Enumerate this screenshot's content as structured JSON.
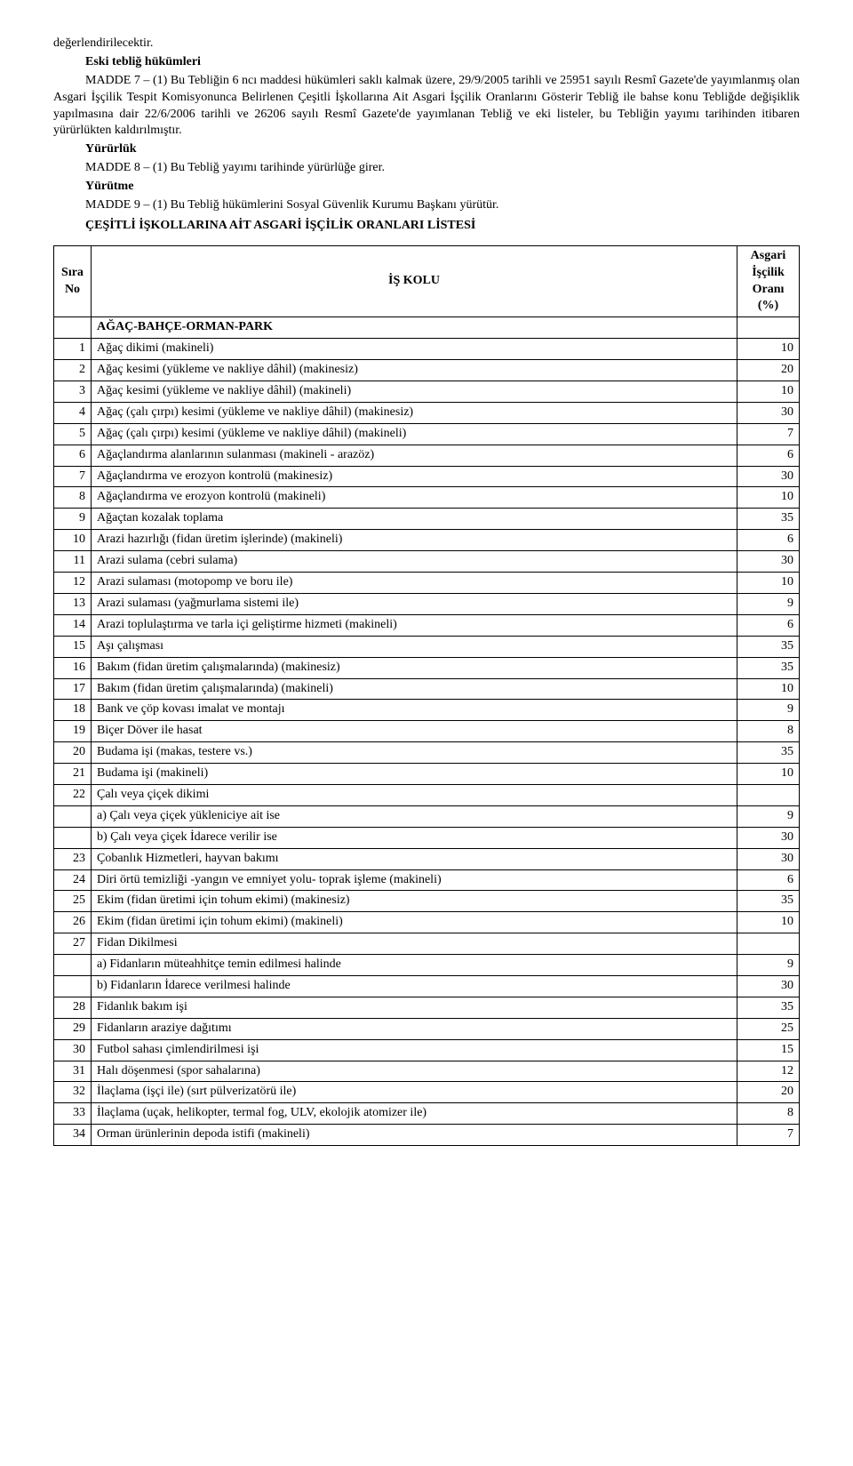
{
  "intro": {
    "line1": "değerlendirilecektir.",
    "heading1": "Eski tebliğ hükümleri",
    "madde7": "MADDE 7 – (1) Bu Tebliğin 6 ncı maddesi hükümleri saklı kalmak üzere, 29/9/2005 tarihli ve 25951 sayılı Resmî Gazete'de yayımlanmış olan Asgari İşçilik Tespit Komisyonunca Belirlenen Çeşitli İşkollarına Ait Asgari İşçilik Oranlarını Gösterir Tebliğ ile bahse konu Tebliğde değişiklik yapılmasına dair 22/6/2006 tarihli ve 26206 sayılı Resmî Gazete'de yayımlanan Tebliğ ve eki listeler, bu Tebliğin yayımı tarihinden itibaren yürürlükten kaldırılmıştır.",
    "heading2": "Yürürlük",
    "madde8": "MADDE 8 – (1) Bu Tebliğ yayımı tarihinde yürürlüğe girer.",
    "heading3": "Yürütme",
    "madde9": "MADDE 9 – (1) Bu Tebliğ hükümlerini Sosyal Güvenlik Kurumu Başkanı yürütür.",
    "list_title": "ÇEŞİTLİ İŞKOLLARINA AİT ASGARİ İŞÇİLİK ORANLARI LİSTESİ"
  },
  "table": {
    "headers": {
      "sira": "Sıra No",
      "iskolu": "İŞ KOLU",
      "oran": "Asgari İşçilik Oranı (%)"
    },
    "section": "AĞAÇ-BAHÇE-ORMAN-PARK",
    "rows": [
      {
        "n": "1",
        "name": "Ağaç dikimi (makineli)",
        "v": "10"
      },
      {
        "n": "2",
        "name": "Ağaç kesimi (yükleme ve nakliye dâhil) (makinesiz)",
        "v": "20"
      },
      {
        "n": "3",
        "name": "Ağaç kesimi (yükleme ve nakliye dâhil) (makineli)",
        "v": "10"
      },
      {
        "n": "4",
        "name": "Ağaç (çalı çırpı) kesimi (yükleme ve nakliye dâhil) (makinesiz)",
        "v": "30"
      },
      {
        "n": "5",
        "name": "Ağaç (çalı çırpı) kesimi (yükleme ve nakliye dâhil) (makineli)",
        "v": "7"
      },
      {
        "n": "6",
        "name": "Ağaçlandırma alanlarının sulanması (makineli - arazöz)",
        "v": "6"
      },
      {
        "n": "7",
        "name": "Ağaçlandırma ve erozyon kontrolü (makinesiz)",
        "v": "30"
      },
      {
        "n": "8",
        "name": "Ağaçlandırma ve erozyon kontrolü (makineli)",
        "v": "10"
      },
      {
        "n": "9",
        "name": "Ağaçtan kozalak toplama",
        "v": "35"
      },
      {
        "n": "10",
        "name": "Arazi hazırlığı (fidan üretim işlerinde) (makineli)",
        "v": "6"
      },
      {
        "n": "11",
        "name": "Arazi sulama (cebri sulama)",
        "v": "30"
      },
      {
        "n": "12",
        "name": "Arazi sulaması (motopomp ve boru ile)",
        "v": "10"
      },
      {
        "n": "13",
        "name": "Arazi sulaması (yağmurlama sistemi ile)",
        "v": "9"
      },
      {
        "n": "14",
        "name": "Arazi toplulaştırma ve tarla içi geliştirme hizmeti (makineli)",
        "v": "6"
      },
      {
        "n": "15",
        "name": "Aşı çalışması",
        "v": "35"
      },
      {
        "n": "16",
        "name": "Bakım (fidan üretim çalışmalarında) (makinesiz)",
        "v": "35"
      },
      {
        "n": "17",
        "name": "Bakım (fidan üretim çalışmalarında) (makineli)",
        "v": "10"
      },
      {
        "n": "18",
        "name": "Bank ve çöp kovası imalat ve montajı",
        "v": "9"
      },
      {
        "n": "19",
        "name": "Biçer Döver ile hasat",
        "v": "8"
      },
      {
        "n": "20",
        "name": "Budama işi  (makas, testere vs.)",
        "v": "35"
      },
      {
        "n": "21",
        "name": "Budama işi (makineli)",
        "v": "10"
      },
      {
        "n": "22",
        "name": "Çalı veya çiçek dikimi",
        "v": "",
        "subs": [
          {
            "name": "a) Çalı veya çiçek yükleniciye ait ise",
            "v": "9"
          },
          {
            "name": "b) Çalı veya çiçek İdarece verilir ise",
            "v": "30"
          }
        ]
      },
      {
        "n": "23",
        "name": "Çobanlık Hizmetleri, hayvan bakımı",
        "v": "30"
      },
      {
        "n": "24",
        "name": "Diri örtü temizliği -yangın ve emniyet yolu- toprak işleme (makineli)",
        "v": "6"
      },
      {
        "n": "25",
        "name": "Ekim (fidan üretimi için tohum ekimi) (makinesiz)",
        "v": "35"
      },
      {
        "n": "26",
        "name": "Ekim (fidan üretimi için tohum ekimi) (makineli)",
        "v": "10"
      },
      {
        "n": "27",
        "name": "Fidan Dikilmesi",
        "v": "",
        "subs": [
          {
            "name": "a) Fidanların müteahhitçe temin edilmesi halinde",
            "v": "9"
          },
          {
            "name": "b) Fidanların İdarece verilmesi halinde",
            "v": "30"
          }
        ]
      },
      {
        "n": "28",
        "name": "Fidanlık bakım işi",
        "v": "35"
      },
      {
        "n": "29",
        "name": "Fidanların araziye dağıtımı",
        "v": "25"
      },
      {
        "n": "30",
        "name": "Futbol sahası çimlendirilmesi işi",
        "v": "15"
      },
      {
        "n": "31",
        "name": "Halı döşenmesi (spor sahalarına)",
        "v": "12"
      },
      {
        "n": "32",
        "name": "İlaçlama (işçi ile) (sırt pülverizatörü ile)",
        "v": "20"
      },
      {
        "n": "33",
        "name": "İlaçlama (uçak, helikopter, termal fog, ULV, ekolojik atomizer ile)",
        "v": "8"
      },
      {
        "n": "34",
        "name": "Orman ürünlerinin depoda istifi (makineli)",
        "v": "7"
      }
    ]
  }
}
